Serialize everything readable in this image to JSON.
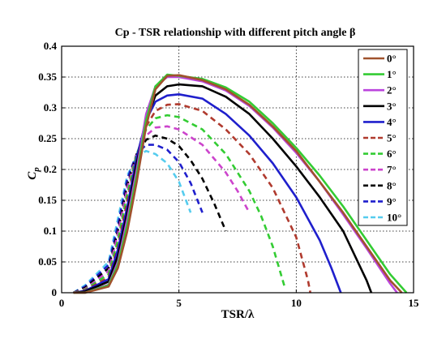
{
  "chart_data": {
    "type": "line",
    "title": "Cp - TSR relationship with different pitch angle β",
    "xlabel": "TSR/λ",
    "ylabel_main": "C",
    "ylabel_sub": "p",
    "xlim": [
      0,
      15
    ],
    "ylim": [
      0,
      0.4
    ],
    "x_ticks": [
      "0",
      "5",
      "10",
      "15"
    ],
    "y_ticks": [
      "0",
      "0.05",
      "0.1",
      "0.15",
      "0.2",
      "0.25",
      "0.3",
      "0.35",
      "0.4"
    ],
    "grid": true,
    "legend_position": "top-right",
    "series": [
      {
        "name": "0°",
        "color": "#a0522d",
        "dash": false,
        "rise_start": 2.0,
        "rise_end": 3.5,
        "x": [
          0.5,
          1.0,
          2.0,
          2.4,
          2.8,
          3.2,
          3.6,
          4.0,
          4.5,
          5.0,
          6.0,
          7.0,
          8.0,
          9.0,
          10.0,
          11.0,
          12.0,
          13.0,
          14.0,
          14.5
        ],
        "y": [
          0.0,
          0.0,
          0.01,
          0.04,
          0.1,
          0.18,
          0.27,
          0.33,
          0.352,
          0.353,
          0.345,
          0.33,
          0.305,
          0.27,
          0.23,
          0.18,
          0.13,
          0.075,
          0.02,
          0.0
        ]
      },
      {
        "name": "1°",
        "color": "#33cc33",
        "dash": false,
        "x": [
          0.5,
          1.0,
          2.0,
          2.4,
          2.8,
          3.2,
          3.6,
          4.0,
          4.5,
          5.0,
          6.0,
          7.0,
          8.0,
          9.0,
          10.0,
          11.0,
          12.0,
          13.0,
          14.0,
          14.7
        ],
        "y": [
          0.0,
          0.0,
          0.012,
          0.045,
          0.11,
          0.19,
          0.28,
          0.335,
          0.354,
          0.352,
          0.347,
          0.333,
          0.31,
          0.275,
          0.235,
          0.19,
          0.14,
          0.085,
          0.03,
          0.0
        ]
      },
      {
        "name": "2°",
        "color": "#bb44dd",
        "dash": false,
        "x": [
          0.5,
          1.0,
          2.0,
          2.4,
          2.8,
          3.2,
          3.6,
          4.0,
          4.5,
          5.0,
          6.0,
          7.0,
          8.0,
          9.0,
          10.0,
          11.0,
          12.0,
          13.0,
          14.0,
          14.3
        ],
        "y": [
          0.0,
          0.0,
          0.013,
          0.05,
          0.12,
          0.2,
          0.29,
          0.335,
          0.35,
          0.35,
          0.343,
          0.328,
          0.303,
          0.268,
          0.227,
          0.18,
          0.127,
          0.072,
          0.015,
          0.0
        ]
      },
      {
        "name": "3°",
        "color": "#000000",
        "dash": false,
        "x": [
          0.5,
          1.0,
          2.0,
          2.4,
          2.8,
          3.2,
          3.6,
          4.0,
          4.5,
          5.0,
          6.0,
          7.0,
          8.0,
          9.0,
          10.0,
          11.0,
          12.0,
          13.0,
          13.2
        ],
        "y": [
          0.0,
          0.002,
          0.018,
          0.06,
          0.13,
          0.21,
          0.28,
          0.32,
          0.335,
          0.338,
          0.335,
          0.318,
          0.29,
          0.25,
          0.205,
          0.155,
          0.1,
          0.02,
          0.0
        ]
      },
      {
        "name": "4°",
        "color": "#1f1fcc",
        "dash": false,
        "x": [
          0.5,
          1.0,
          2.0,
          2.4,
          2.8,
          3.2,
          3.6,
          4.0,
          4.5,
          5.0,
          6.0,
          7.0,
          8.0,
          9.0,
          10.0,
          11.0,
          11.5,
          11.9
        ],
        "y": [
          0.0,
          0.003,
          0.022,
          0.07,
          0.14,
          0.22,
          0.28,
          0.31,
          0.32,
          0.322,
          0.315,
          0.29,
          0.255,
          0.21,
          0.155,
          0.085,
          0.04,
          0.0
        ]
      },
      {
        "name": "5°",
        "color": "#b03a2e",
        "dash": true,
        "x": [
          0.5,
          1.0,
          2.0,
          2.4,
          2.8,
          3.2,
          3.6,
          4.0,
          4.5,
          5.0,
          6.0,
          7.0,
          8.0,
          9.0,
          10.0,
          10.5,
          10.6
        ],
        "y": [
          0.0,
          0.004,
          0.025,
          0.075,
          0.15,
          0.22,
          0.27,
          0.295,
          0.305,
          0.306,
          0.295,
          0.265,
          0.225,
          0.17,
          0.09,
          0.02,
          0.0
        ]
      },
      {
        "name": "6°",
        "color": "#33cc33",
        "dash": true,
        "x": [
          0.5,
          1.0,
          2.0,
          2.4,
          2.8,
          3.2,
          3.6,
          4.0,
          4.5,
          5.0,
          6.0,
          7.0,
          8.0,
          8.5,
          9.0,
          9.5
        ],
        "y": [
          0.0,
          0.005,
          0.03,
          0.085,
          0.16,
          0.225,
          0.265,
          0.283,
          0.288,
          0.285,
          0.265,
          0.225,
          0.165,
          0.125,
          0.075,
          0.01
        ]
      },
      {
        "name": "7°",
        "color": "#cc44cc",
        "dash": true,
        "x": [
          0.5,
          1.0,
          2.0,
          2.4,
          2.8,
          3.2,
          3.6,
          4.0,
          4.5,
          5.0,
          6.0,
          7.0,
          7.5,
          8.0
        ],
        "y": [
          0.0,
          0.006,
          0.035,
          0.095,
          0.17,
          0.225,
          0.255,
          0.268,
          0.27,
          0.265,
          0.24,
          0.195,
          0.165,
          0.13
        ]
      },
      {
        "name": "8°",
        "color": "#000000",
        "dash": true,
        "x": [
          0.5,
          1.0,
          2.0,
          2.4,
          2.8,
          3.2,
          3.6,
          4.0,
          4.5,
          5.0,
          5.5,
          6.0,
          6.5,
          7.0
        ],
        "y": [
          0.0,
          0.008,
          0.04,
          0.1,
          0.175,
          0.225,
          0.248,
          0.255,
          0.25,
          0.238,
          0.215,
          0.185,
          0.145,
          0.1
        ]
      },
      {
        "name": "9°",
        "color": "#1f1fcc",
        "dash": true,
        "x": [
          0.5,
          1.0,
          2.0,
          2.4,
          2.8,
          3.2,
          3.6,
          4.0,
          4.5,
          5.0,
          5.5,
          6.0
        ],
        "y": [
          0.0,
          0.01,
          0.045,
          0.11,
          0.185,
          0.225,
          0.24,
          0.24,
          0.232,
          0.212,
          0.178,
          0.13
        ]
      },
      {
        "name": "10°",
        "color": "#55ccee",
        "dash": true,
        "x": [
          0.5,
          1.0,
          2.0,
          2.4,
          2.8,
          3.2,
          3.6,
          4.0,
          4.5,
          5.0,
          5.5
        ],
        "y": [
          0.0,
          0.012,
          0.05,
          0.12,
          0.19,
          0.222,
          0.23,
          0.225,
          0.21,
          0.18,
          0.13
        ]
      }
    ]
  }
}
